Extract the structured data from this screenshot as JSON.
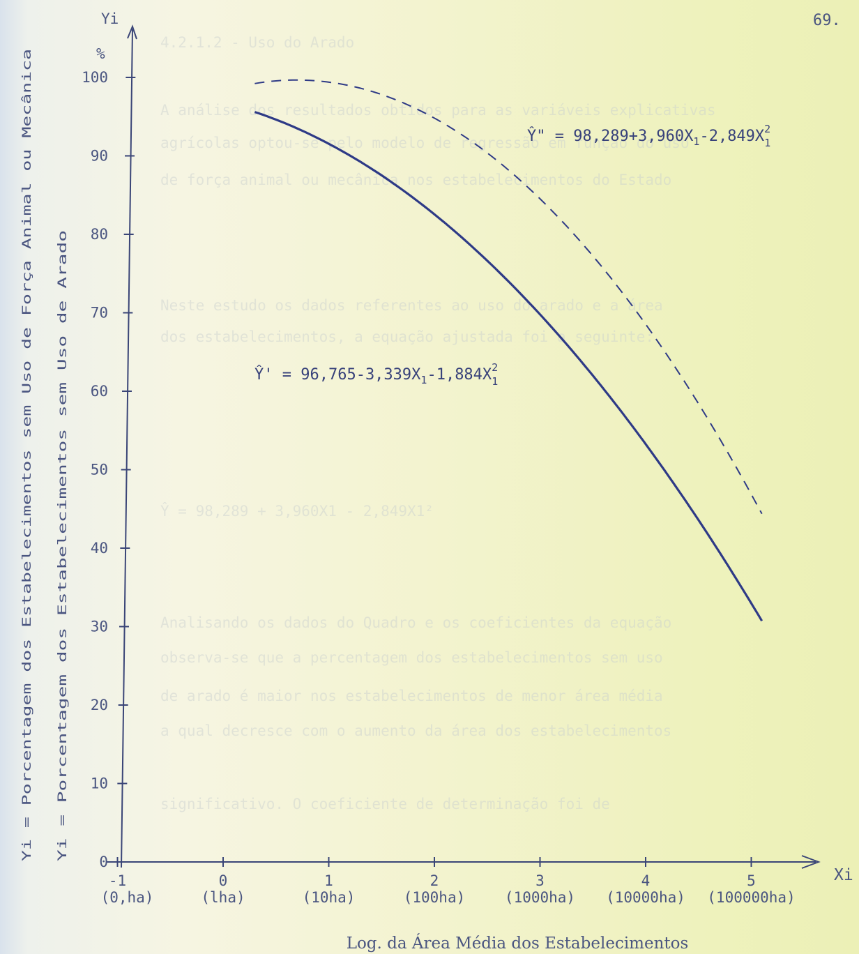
{
  "page_number": "69.",
  "chart_data": {
    "type": "line",
    "x_axis": {
      "label": "Xi",
      "title": "Log. da Área Média dos Estabelecimentos",
      "ticks": [
        {
          "value": -1,
          "label": "-1",
          "sublabel": "(0,ha)"
        },
        {
          "value": 0,
          "label": "0",
          "sublabel": "(lha)"
        },
        {
          "value": 1,
          "label": "1",
          "sublabel": "(10ha)"
        },
        {
          "value": 2,
          "label": "2",
          "sublabel": "(100ha)"
        },
        {
          "value": 3,
          "label": "3",
          "sublabel": "(1000ha)"
        },
        {
          "value": 4,
          "label": "4",
          "sublabel": "(10000ha)"
        },
        {
          "value": 5,
          "label": "5",
          "sublabel": "(100000ha)"
        }
      ]
    },
    "y_axis": {
      "label": "Yi",
      "unit": "%",
      "ticks": [
        0,
        10,
        20,
        30,
        40,
        50,
        60,
        70,
        80,
        90,
        100
      ],
      "side_labels": [
        "Yi = Porcentagem dos Estabelecimentos sem Uso de Força Animal ou Mecânica",
        "Yi = Porcentagem dos Estabelecimentos sem Uso de Arado"
      ]
    },
    "series": [
      {
        "equation": "Ŷ' = 96,765-3,339X1-1,884X",
        "eq_sup": "2",
        "eq_sub": "1",
        "style": "solid",
        "color": "#2e3a86",
        "coefficients": [
          96.765,
          -3.339,
          -1.884
        ],
        "x_range": [
          0.3,
          5.1
        ],
        "points": [
          [
            0.3,
            97.6
          ],
          [
            1,
            93.5
          ],
          [
            2,
            82.6
          ],
          [
            3,
            68.0
          ],
          [
            4,
            53.8
          ],
          [
            5,
            32.9
          ],
          [
            5.1,
            30.5
          ]
        ]
      },
      {
        "equation": "Ŷ\" = 98,289+3,960X1-2,849X",
        "eq_sup": "2",
        "eq_sub": "1",
        "style": "dashed",
        "color": "#2e3a86",
        "coefficients": [
          98.289,
          3.96,
          -2.849
        ],
        "x_range": [
          0.3,
          5.1
        ],
        "points": [
          [
            0.3,
            99.2
          ],
          [
            1.1,
            101.6
          ],
          [
            2,
            95.6
          ],
          [
            3,
            90.4
          ],
          [
            4,
            68.8
          ],
          [
            5,
            47.1
          ],
          [
            5.1,
            44.1
          ]
        ]
      }
    ],
    "faded_lines": [
      {
        "text": "4.2.1.2 - Uso do Arado",
        "offset": 48
      },
      {
        "text": "A análise dos resultados obtidos para as variáveis explicativas",
        "offset": 145
      },
      {
        "text": "agrícolas optou-se pelo modelo de regressão em função do uso",
        "offset": 192
      },
      {
        "text": "de força animal ou mecânica nos estabelecimentos do Estado",
        "offset": 245
      },
      {
        "text": "Neste estudo os dados referentes ao uso do arado e a área",
        "offset": 425
      },
      {
        "text": "dos estabelecimentos, a equação ajustada foi a seguinte:",
        "offset": 470
      },
      {
        "text": "Ŷ = 98,289 + 3,960X1 - 2,849X1²",
        "offset": 720
      },
      {
        "text": "Analisando os dados do Quadro e os coeficientes da equação",
        "offset": 880
      },
      {
        "text": "observa-se que a percentagem dos estabelecimentos sem uso",
        "offset": 930
      },
      {
        "text": "de arado é maior nos estabelecimentos de menor área média",
        "offset": 985
      },
      {
        "text": "a qual decresce com o aumento da área dos estabelecimentos",
        "offset": 1035
      },
      {
        "text": "significativo. O coeficiente de determinação foi de",
        "offset": 1140
      }
    ]
  }
}
